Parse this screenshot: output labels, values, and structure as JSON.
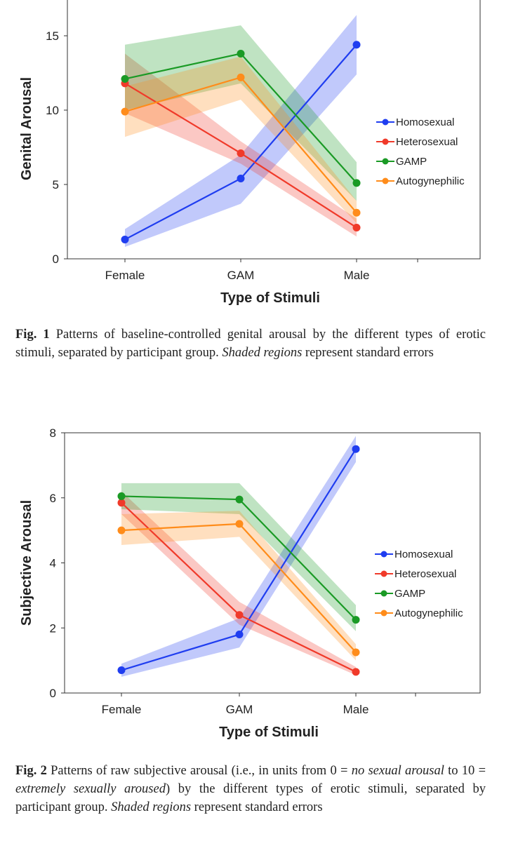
{
  "chart_data": [
    {
      "type": "line",
      "categories": [
        "Female",
        "GAM",
        "Male"
      ],
      "ylabel": "Genital Arousal",
      "xlabel": "Type of Stimuli",
      "ylim": [
        0,
        17.5
      ],
      "yticks": [
        0,
        5,
        10,
        15
      ],
      "legend_position": "right",
      "series": [
        {
          "name": "Homosexual",
          "color": "#1f3df0",
          "values": [
            1.3,
            5.4,
            14.4
          ],
          "lower": [
            0.8,
            3.7,
            12.4
          ],
          "upper": [
            2.0,
            7.0,
            16.4
          ]
        },
        {
          "name": "Heterosexual",
          "color": "#f03a2a",
          "values": [
            11.8,
            7.1,
            2.1
          ],
          "lower": [
            9.8,
            6.4,
            1.5
          ],
          "upper": [
            13.8,
            7.9,
            2.7
          ]
        },
        {
          "name": "GAMP",
          "color": "#1a9a25",
          "values": [
            12.1,
            13.8,
            5.1
          ],
          "lower": [
            10.0,
            11.8,
            3.9
          ],
          "upper": [
            14.4,
            15.7,
            6.5
          ]
        },
        {
          "name": "Autogynephilic",
          "color": "#ff8c1a",
          "values": [
            9.9,
            12.2,
            3.1
          ],
          "lower": [
            8.2,
            10.7,
            2.4
          ],
          "upper": [
            11.6,
            13.6,
            3.9
          ]
        }
      ],
      "caption": {
        "label": "Fig. 1",
        "parts": [
          {
            "text": "Patterns of baseline-controlled genital arousal by the different types of erotic stimuli, separated by participant group. ",
            "style": "normal"
          },
          {
            "text": "Shaded regions",
            "style": "italic"
          },
          {
            "text": " represent standard errors",
            "style": "normal"
          }
        ]
      }
    },
    {
      "type": "line",
      "categories": [
        "Female",
        "GAM",
        "Male"
      ],
      "ylabel": "Subjective Arousal",
      "xlabel": "Type of Stimuli",
      "ylim": [
        0,
        8
      ],
      "yticks": [
        0,
        2,
        4,
        6,
        8
      ],
      "legend_position": "right",
      "series": [
        {
          "name": "Homosexual",
          "color": "#1f3df0",
          "values": [
            0.7,
            1.8,
            7.5
          ],
          "lower": [
            0.5,
            1.4,
            7.1
          ],
          "upper": [
            0.9,
            2.3,
            7.9
          ]
        },
        {
          "name": "Heterosexual",
          "color": "#f03a2a",
          "values": [
            5.85,
            2.4,
            0.65
          ],
          "lower": [
            5.5,
            2.1,
            0.55
          ],
          "upper": [
            6.2,
            2.8,
            0.8
          ]
        },
        {
          "name": "GAMP",
          "color": "#1a9a25",
          "values": [
            6.05,
            5.95,
            2.25
          ],
          "lower": [
            5.65,
            5.5,
            1.9
          ],
          "upper": [
            6.45,
            6.45,
            2.7
          ]
        },
        {
          "name": "Autogynephilic",
          "color": "#ff8c1a",
          "values": [
            5.0,
            5.2,
            1.25
          ],
          "lower": [
            4.55,
            4.8,
            1.0
          ],
          "upper": [
            5.5,
            5.6,
            1.5
          ]
        }
      ],
      "caption": {
        "label": "Fig. 2",
        "parts": [
          {
            "text": "Patterns of raw subjective arousal (i.e., in units from 0 = ",
            "style": "normal"
          },
          {
            "text": "no sexual arousal",
            "style": "italic"
          },
          {
            "text": " to 10 = ",
            "style": "normal"
          },
          {
            "text": "extremely sexually aroused",
            "style": "italic"
          },
          {
            "text": ") by the different types of erotic stimuli, separated by participant group. ",
            "style": "normal"
          },
          {
            "text": "Shaded regions",
            "style": "italic"
          },
          {
            "text": " represent standard errors",
            "style": "normal"
          }
        ]
      }
    }
  ]
}
